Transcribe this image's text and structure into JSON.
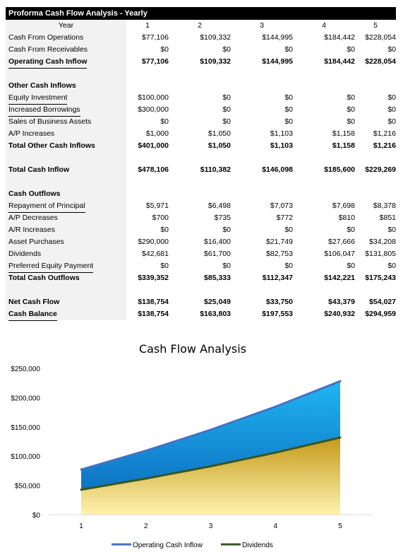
{
  "sheet": {
    "title": "Proforma Cash Flow Analysis - Yearly",
    "year_header": "Year",
    "years": [
      "1",
      "2",
      "3",
      "4",
      "5"
    ],
    "rows": [
      {
        "label": "Cash From Operations",
        "values": [
          "$77,106",
          "$109,332",
          "$144,995",
          "$184,442",
          "$228,054"
        ],
        "bold": false,
        "ul": false
      },
      {
        "label": "Cash From Receivables",
        "values": [
          "$0",
          "$0",
          "$0",
          "$0",
          "$0"
        ],
        "bold": false,
        "ul": false
      },
      {
        "label": "Operating Cash Inflow",
        "values": [
          "$77,106",
          "$109,332",
          "$144,995",
          "$184,442",
          "$228,054"
        ],
        "bold": true,
        "ul": true
      },
      {
        "label": "",
        "values": [
          "",
          "",
          "",
          "",
          ""
        ],
        "bold": false,
        "ul": false
      },
      {
        "label": "Other Cash Inflows",
        "values": [
          "",
          "",
          "",
          "",
          ""
        ],
        "bold": true,
        "ul": false
      },
      {
        "label": "Equity Investment",
        "values": [
          "$100,000",
          "$0",
          "$0",
          "$0",
          "$0"
        ],
        "bold": false,
        "ul": true
      },
      {
        "label": "Increased Borrowings",
        "values": [
          "$300,000",
          "$0",
          "$0",
          "$0",
          "$0"
        ],
        "bold": false,
        "ul": true
      },
      {
        "label": "Sales of Business Assets",
        "values": [
          "$0",
          "$0",
          "$0",
          "$0",
          "$0"
        ],
        "bold": false,
        "ul": false
      },
      {
        "label": "A/P Increases",
        "values": [
          "$1,000",
          "$1,050",
          "$1,103",
          "$1,158",
          "$1,216"
        ],
        "bold": false,
        "ul": false
      },
      {
        "label": "Total Other Cash Inflows",
        "values": [
          "$401,000",
          "$1,050",
          "$1,103",
          "$1,158",
          "$1,216"
        ],
        "bold": true,
        "ul": false
      },
      {
        "label": "",
        "values": [
          "",
          "",
          "",
          "",
          ""
        ],
        "bold": false,
        "ul": false
      },
      {
        "label": "Total Cash Inflow",
        "values": [
          "$478,106",
          "$110,382",
          "$146,098",
          "$185,600",
          "$229,269"
        ],
        "bold": true,
        "ul": false
      },
      {
        "label": "",
        "values": [
          "",
          "",
          "",
          "",
          ""
        ],
        "bold": false,
        "ul": false
      },
      {
        "label": "Cash Outflows",
        "values": [
          "",
          "",
          "",
          "",
          ""
        ],
        "bold": true,
        "ul": false
      },
      {
        "label": "Repayment of Principal",
        "values": [
          "$5,971",
          "$6,498",
          "$7,073",
          "$7,698",
          "$8,378"
        ],
        "bold": false,
        "ul": true
      },
      {
        "label": "A/P Decreases",
        "values": [
          "$700",
          "$735",
          "$772",
          "$810",
          "$851"
        ],
        "bold": false,
        "ul": false
      },
      {
        "label": "A/R Increases",
        "values": [
          "$0",
          "$0",
          "$0",
          "$0",
          "$0"
        ],
        "bold": false,
        "ul": false
      },
      {
        "label": "Asset Purchases",
        "values": [
          "$290,000",
          "$16,400",
          "$21,749",
          "$27,666",
          "$34,208"
        ],
        "bold": false,
        "ul": false
      },
      {
        "label": "Dividends",
        "values": [
          "$42,681",
          "$61,700",
          "$82,753",
          "$106,047",
          "$131,805"
        ],
        "bold": false,
        "ul": false
      },
      {
        "label": "Preferred Equity Payment",
        "values": [
          "$0",
          "$0",
          "$0",
          "$0",
          "$0"
        ],
        "bold": false,
        "ul": true
      },
      {
        "label": "Total Cash Outflows",
        "values": [
          "$339,352",
          "$85,333",
          "$112,347",
          "$142,221",
          "$175,243"
        ],
        "bold": true,
        "ul": false
      },
      {
        "label": "",
        "values": [
          "",
          "",
          "",
          "",
          ""
        ],
        "bold": false,
        "ul": false
      },
      {
        "label": "Net Cash Flow",
        "values": [
          "$138,754",
          "$25,049",
          "$33,750",
          "$43,379",
          "$54,027"
        ],
        "bold": true,
        "ul": false
      },
      {
        "label": "Cash Balance",
        "values": [
          "$138,754",
          "$163,803",
          "$197,553",
          "$240,932",
          "$294,959"
        ],
        "bold": true,
        "ul": true
      }
    ]
  },
  "chart_data": {
    "type": "area",
    "title": "Cash Flow Analysis",
    "x": [
      1,
      2,
      3,
      4,
      5
    ],
    "x_ticks": [
      "1",
      "2",
      "3",
      "4",
      "5"
    ],
    "y_ticks": [
      "$0",
      "$50,000",
      "$100,000",
      "$150,000",
      "$200,000",
      "$250,000"
    ],
    "ylim": [
      0,
      250000
    ],
    "series": [
      {
        "name": "Operating Cash Inflow",
        "values": [
          77106,
          109332,
          144995,
          184442,
          228054
        ],
        "line_color": "#4472c4",
        "fill_color": "#00b0f0"
      },
      {
        "name": "Dividends",
        "values": [
          42681,
          61700,
          82753,
          106047,
          131805
        ],
        "line_color": "#375623",
        "fill_color": "#ffd966"
      }
    ],
    "legend": "bottom",
    "grid": false
  }
}
